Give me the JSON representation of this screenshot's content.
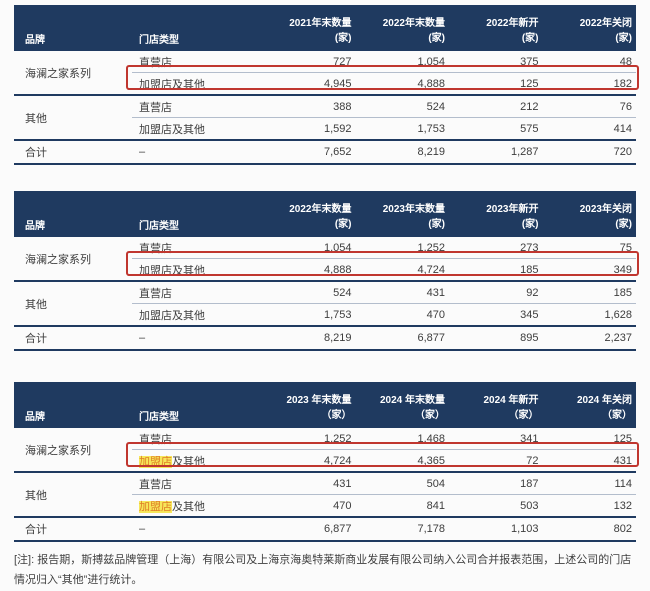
{
  "colors": {
    "page_bg": "#fbfbfb",
    "header_bg": "#1f3a60",
    "header_text": "#ffffff",
    "body_text": "#3d3d3d",
    "row_line": "#b3bdcc",
    "group_line": "#1f3a60",
    "red_box": "#c0362f",
    "highlight_bg": "#f6e75a",
    "highlight_text": "#df7d26"
  },
  "tables": [
    {
      "brand_header": "品牌",
      "type_header": "门店类型",
      "columns": [
        {
          "line1": "2021年末数量",
          "line2": "(家)"
        },
        {
          "line1": "2022年末数量",
          "line2": "(家)"
        },
        {
          "line1": "2022年新开",
          "line2": "(家)"
        },
        {
          "line1": "2022年关闭",
          "line2": "(家)"
        }
      ],
      "groups": [
        {
          "brand": "海澜之家系列",
          "rows": [
            {
              "type_hl": "",
              "type_rest": "直营店",
              "values": [
                "727",
                "1,054",
                "375",
                "48"
              ]
            },
            {
              "type_hl": "",
              "type_rest": "加盟店及其他",
              "values": [
                "4,945",
                "4,888",
                "125",
                "182"
              ]
            }
          ]
        },
        {
          "brand": "其他",
          "rows": [
            {
              "type_hl": "",
              "type_rest": "直营店",
              "values": [
                "388",
                "524",
                "212",
                "76"
              ]
            },
            {
              "type_hl": "",
              "type_rest": "加盟店及其他",
              "values": [
                "1,592",
                "1,753",
                "575",
                "414"
              ]
            }
          ]
        }
      ],
      "total": {
        "label": "合计",
        "type": "–",
        "values": [
          "7,652",
          "8,219",
          "1,287",
          "720"
        ]
      }
    },
    {
      "brand_header": "品牌",
      "type_header": "门店类型",
      "columns": [
        {
          "line1": "2022年末数量",
          "line2": "(家)"
        },
        {
          "line1": "2023年末数量",
          "line2": "(家)"
        },
        {
          "line1": "2023年新开",
          "line2": "(家)"
        },
        {
          "line1": "2023年关闭",
          "line2": "(家)"
        }
      ],
      "groups": [
        {
          "brand": "海澜之家系列",
          "rows": [
            {
              "type_hl": "",
              "type_rest": "直营店",
              "values": [
                "1,054",
                "1,252",
                "273",
                "75"
              ]
            },
            {
              "type_hl": "",
              "type_rest": "加盟店及其他",
              "values": [
                "4,888",
                "4,724",
                "185",
                "349"
              ]
            }
          ]
        },
        {
          "brand": "其他",
          "rows": [
            {
              "type_hl": "",
              "type_rest": "直营店",
              "values": [
                "524",
                "431",
                "92",
                "185"
              ]
            },
            {
              "type_hl": "",
              "type_rest": "加盟店及其他",
              "values": [
                "1,753",
                "470",
                "345",
                "1,628"
              ]
            }
          ]
        }
      ],
      "total": {
        "label": "合计",
        "type": "–",
        "values": [
          "8,219",
          "6,877",
          "895",
          "2,237"
        ]
      }
    },
    {
      "brand_header": "品牌",
      "type_header": "门店类型",
      "columns": [
        {
          "line1": "2023 年末数量",
          "line2": "（家）"
        },
        {
          "line1": "2024 年末数量",
          "line2": "（家）"
        },
        {
          "line1": "2024 年新开",
          "line2": "（家）"
        },
        {
          "line1": "2024 年关闭",
          "line2": "（家）"
        }
      ],
      "groups": [
        {
          "brand": "海澜之家系列",
          "rows": [
            {
              "type_hl": "",
              "type_rest": "直营店",
              "values": [
                "1,252",
                "1,468",
                "341",
                "125"
              ]
            },
            {
              "type_hl": "加盟店",
              "type_rest": "及其他",
              "values": [
                "4,724",
                "4,365",
                "72",
                "431"
              ]
            }
          ]
        },
        {
          "brand": "其他",
          "rows": [
            {
              "type_hl": "",
              "type_rest": "直营店",
              "values": [
                "431",
                "504",
                "187",
                "114"
              ]
            },
            {
              "type_hl": "加盟店",
              "type_rest": "及其他",
              "values": [
                "470",
                "841",
                "503",
                "132"
              ]
            }
          ]
        }
      ],
      "total": {
        "label": "合计",
        "type": "–",
        "values": [
          "6,877",
          "7,178",
          "1,103",
          "802"
        ]
      }
    }
  ],
  "footnote": "[注]: 报告期，斯搏兹品牌管理（上海）有限公司及上海京海奥特莱斯商业发展有限公司纳入公司合并报表范围，上述公司的门店情况归入“其他”进行统计。"
}
